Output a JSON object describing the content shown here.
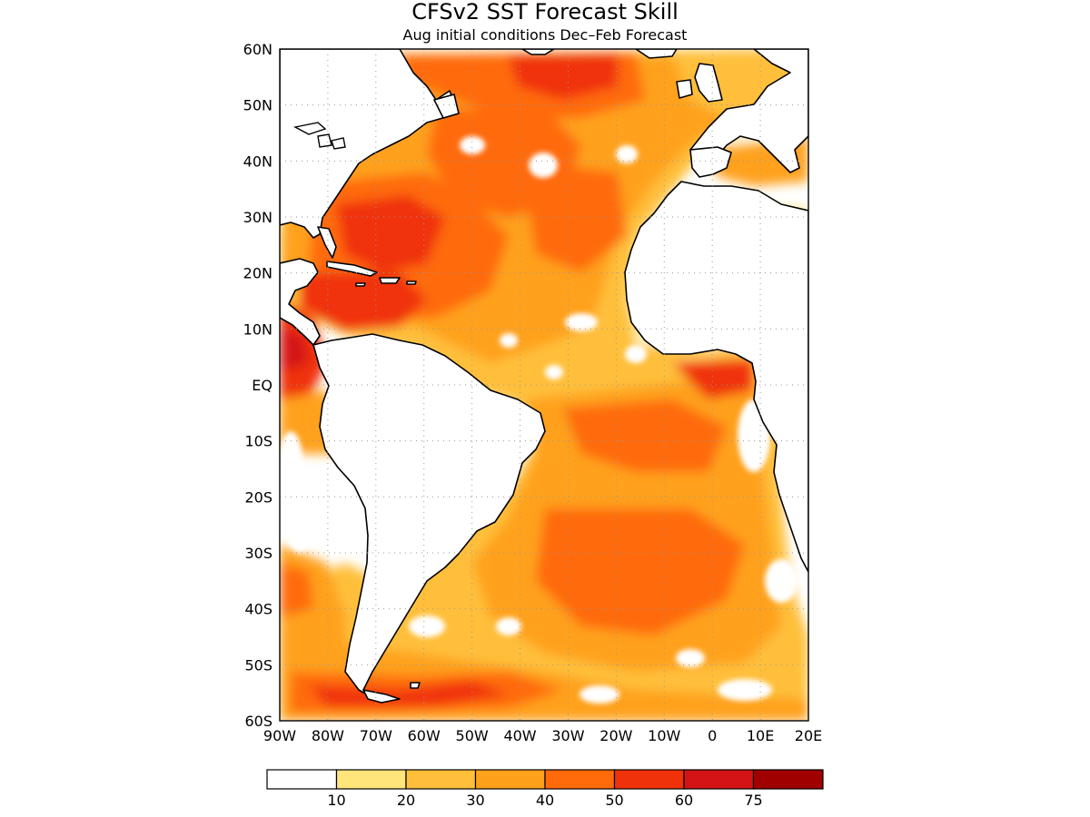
{
  "title": "CFSv2 SST Forecast Skill",
  "subtitle": "Aug initial conditions   Dec–Feb Forecast",
  "map": {
    "lat_labels": [
      "60N",
      "50N",
      "40N",
      "30N",
      "20N",
      "10N",
      "EQ",
      "10S",
      "20S",
      "30S",
      "40S",
      "50S",
      "60S"
    ],
    "lon_labels": [
      "90W",
      "80W",
      "70W",
      "60W",
      "50W",
      "40W",
      "30W",
      "20W",
      "10W",
      "0",
      "10E",
      "20E"
    ],
    "lat_range": [
      -60,
      60
    ],
    "lon_range": [
      -90,
      20
    ],
    "gridlines": true
  },
  "colorbar": {
    "colors": [
      "#ffffff",
      "#ffe57a",
      "#ffbf3a",
      "#ffa11a",
      "#ff6a0a",
      "#f0320a",
      "#d41414",
      "#a00000"
    ],
    "labels": [
      "10",
      "20",
      "30",
      "40",
      "50",
      "60",
      "75"
    ]
  }
}
